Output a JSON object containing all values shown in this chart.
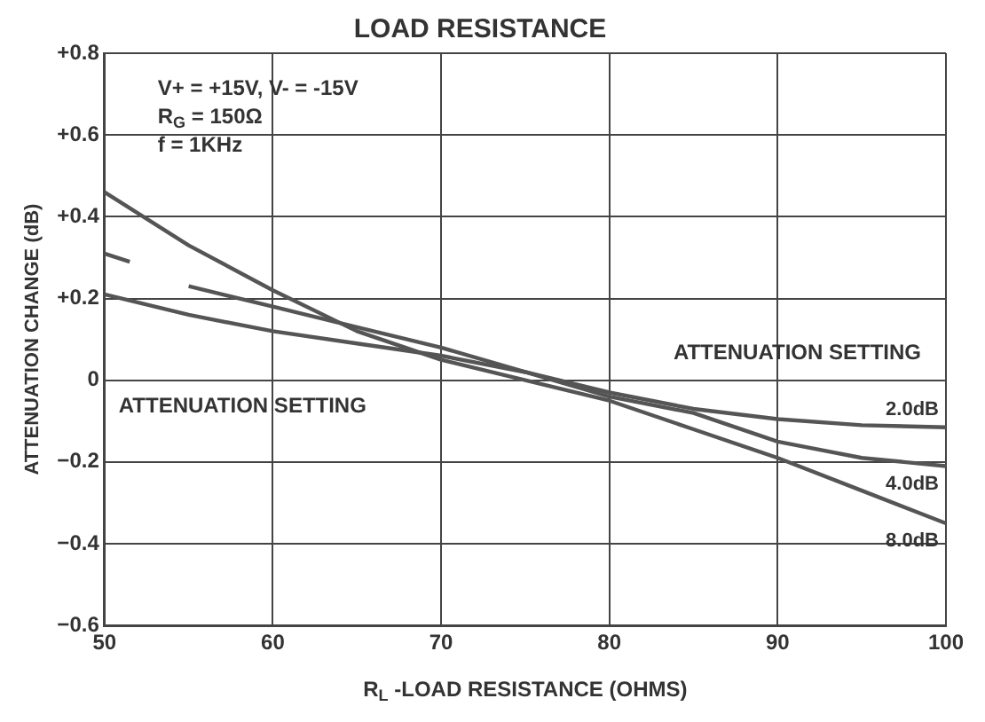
{
  "chart_data": {
    "type": "line",
    "title": "LOAD RESISTANCE",
    "xlabel": "R$_{L}$ -LOAD RESISTANCE (OHMS)",
    "ylabel": "ATTENUATION CHANGE (dB)",
    "xlim": [
      50,
      100
    ],
    "xticks": [
      50,
      60,
      70,
      80,
      90,
      100
    ],
    "ylim": [
      -0.6,
      0.8
    ],
    "yticks": [
      {
        "value": -0.6,
        "label": "−0.6"
      },
      {
        "value": -0.4,
        "label": "−0.4"
      },
      {
        "value": -0.2,
        "label": "−0.2"
      },
      0,
      {
        "value": 0.2,
        "label": "+0.2"
      },
      {
        "value": 0.4,
        "label": "+0.4"
      },
      {
        "value": 0.6,
        "label": "+0.6"
      },
      {
        "value": 0.8,
        "label": "+0.8"
      }
    ],
    "grid": true,
    "marker": "none",
    "line_style": "solid",
    "series": [
      {
        "name": "8.0dB",
        "color": "#555555",
        "x": [
          50,
          55,
          60,
          65,
          70,
          75,
          80,
          85,
          90,
          95,
          100
        ],
        "values": [
          0.46,
          0.33,
          0.22,
          0.12,
          0.05,
          0.0,
          -0.05,
          -0.12,
          -0.19,
          -0.27,
          -0.35
        ]
      },
      {
        "name": "4.0dB",
        "color": "#555555",
        "x": [
          50,
          51.5,
          52,
          55,
          60,
          65,
          70,
          75,
          80,
          85,
          90,
          95,
          100
        ],
        "values": [
          0.31,
          0.29,
          null,
          0.23,
          0.18,
          0.13,
          0.08,
          0.02,
          -0.04,
          -0.08,
          -0.15,
          -0.19,
          -0.21
        ]
      },
      {
        "name": "2.0dB",
        "color": "#555555",
        "x": [
          50,
          55,
          60,
          65,
          70,
          75,
          80,
          85,
          90,
          95,
          100
        ],
        "values": [
          0.21,
          0.16,
          0.12,
          0.09,
          0.06,
          0.02,
          -0.03,
          -0.07,
          -0.095,
          -0.11,
          -0.115
        ]
      }
    ],
    "annotations": [
      "V+ = +15V, V- = -15V",
      "R$_{G}$ = 150Ω",
      "f = 1KHz",
      "ATTENUATION SETTING",
      "ATTENUATION SETTING"
    ]
  }
}
